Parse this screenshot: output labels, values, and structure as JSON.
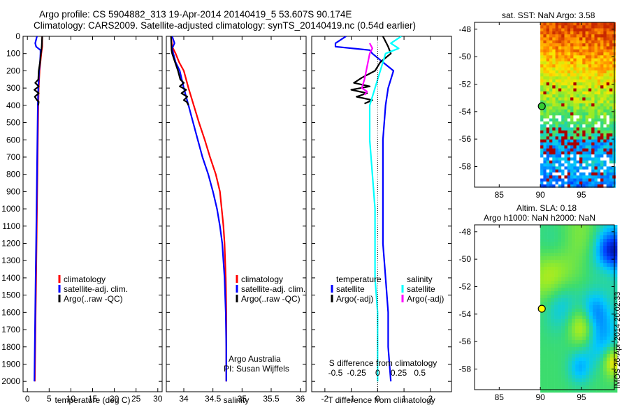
{
  "figure": {
    "title_line1": "Argo profile: CS 5904882_313 19-Apr-2014 20140419_5 53.607S 90.174E",
    "title_line2": "Climatology: CARS2009. Satellite-adjusted climatology: synTS_20140419.nc (0.54d earlier)",
    "credit_line1": "Argo Australia",
    "credit_line2": "PI: Susan Wijffels",
    "stamp": "IMOS 26-Apr-2014 20:02:33",
    "colors": {
      "climatology": "#ff0000",
      "satellite": "#0000ff",
      "argo": "#000000",
      "sat_salinity": "#00ffff",
      "argo_salinity": "#ff00ff"
    }
  },
  "chart_data": [
    {
      "type": "line",
      "name": "temperature-profile",
      "xlabel": "temperature (deg C)",
      "xlim": [
        -1,
        31
      ],
      "xticks": [
        0,
        5,
        10,
        15,
        20,
        25,
        30
      ],
      "ylim": [
        2060,
        0
      ],
      "yticks": [
        0,
        100,
        200,
        300,
        400,
        500,
        600,
        700,
        800,
        900,
        1000,
        1100,
        1200,
        1300,
        1400,
        1500,
        1600,
        1700,
        1800,
        1900,
        2000
      ],
      "legend": [
        "climatology",
        "satellite-adj. clim.",
        "Argo(..raw -QC)"
      ],
      "series": [
        {
          "name": "climatology",
          "color": "#ff0000",
          "points": [
            [
              3.4,
              0
            ],
            [
              3.4,
              60
            ],
            [
              3.2,
              100
            ],
            [
              2.8,
              200
            ],
            [
              2.6,
              300
            ],
            [
              2.5,
              400
            ],
            [
              2.4,
              600
            ],
            [
              2.3,
              800
            ],
            [
              2.2,
              1000
            ],
            [
              2.1,
              1200
            ],
            [
              2.0,
              1400
            ],
            [
              1.9,
              1600
            ],
            [
              1.8,
              1800
            ],
            [
              1.7,
              2000
            ]
          ]
        },
        {
          "name": "satellite-adj. clim.",
          "color": "#0000ff",
          "points": [
            [
              2.2,
              0
            ],
            [
              1.8,
              40
            ],
            [
              2.0,
              60
            ],
            [
              3.0,
              80
            ],
            [
              3.0,
              100
            ],
            [
              2.9,
              150
            ],
            [
              2.7,
              200
            ],
            [
              2.5,
              300
            ],
            [
              2.4,
              400
            ],
            [
              2.3,
              600
            ],
            [
              2.2,
              800
            ],
            [
              2.1,
              1000
            ],
            [
              2.0,
              1200
            ],
            [
              1.9,
              1400
            ],
            [
              1.8,
              1600
            ],
            [
              1.7,
              1800
            ],
            [
              1.6,
              2000
            ]
          ]
        },
        {
          "name": "Argo(..raw -QC)",
          "color": "#000000",
          "points": [
            [
              3.4,
              0
            ],
            [
              3.3,
              60
            ],
            [
              3.1,
              100
            ],
            [
              2.9,
              150
            ],
            [
              2.6,
              200
            ],
            [
              2.5,
              250
            ],
            [
              1.8,
              270
            ],
            [
              2.6,
              290
            ],
            [
              1.6,
              310
            ],
            [
              2.6,
              330
            ],
            [
              1.7,
              350
            ],
            [
              2.2,
              370
            ],
            [
              2.6,
              380
            ],
            [
              2.5,
              400
            ]
          ]
        }
      ]
    },
    {
      "type": "line",
      "name": "salinity-profile",
      "xlabel": "salinity",
      "xlim": [
        33.7,
        36.1
      ],
      "xticks": [
        34,
        34.5,
        35,
        35.5,
        36
      ],
      "xticklabels": [
        "34",
        "34.5",
        "35",
        "35.5",
        "36"
      ],
      "ylim": [
        2060,
        0
      ],
      "legend": [
        "climatology",
        "satellite-adj. clim.",
        "Argo(..raw -QC)"
      ],
      "series": [
        {
          "name": "climatology",
          "color": "#ff0000",
          "points": [
            [
              33.78,
              0
            ],
            [
              33.8,
              60
            ],
            [
              33.86,
              100
            ],
            [
              33.92,
              150
            ],
            [
              34.0,
              200
            ],
            [
              34.08,
              300
            ],
            [
              34.17,
              400
            ],
            [
              34.26,
              500
            ],
            [
              34.36,
              600
            ],
            [
              34.45,
              700
            ],
            [
              34.55,
              800
            ],
            [
              34.62,
              900
            ],
            [
              34.65,
              1000
            ],
            [
              34.68,
              1100
            ],
            [
              34.7,
              1200
            ],
            [
              34.72,
              1400
            ],
            [
              34.73,
              1600
            ],
            [
              34.73,
              1800
            ],
            [
              34.73,
              2000
            ]
          ]
        },
        {
          "name": "satellite-adj. clim.",
          "color": "#0000ff",
          "points": [
            [
              33.8,
              0
            ],
            [
              33.84,
              40
            ],
            [
              33.8,
              70
            ],
            [
              33.82,
              100
            ],
            [
              33.86,
              150
            ],
            [
              33.93,
              200
            ],
            [
              34.0,
              300
            ],
            [
              34.08,
              400
            ],
            [
              34.16,
              500
            ],
            [
              34.24,
              600
            ],
            [
              34.32,
              700
            ],
            [
              34.42,
              800
            ],
            [
              34.5,
              900
            ],
            [
              34.57,
              1000
            ],
            [
              34.62,
              1100
            ],
            [
              34.66,
              1200
            ],
            [
              34.7,
              1400
            ],
            [
              34.72,
              1600
            ],
            [
              34.73,
              1800
            ],
            [
              34.73,
              2000
            ]
          ]
        },
        {
          "name": "Argo(..raw -QC)",
          "color": "#000000",
          "points": [
            [
              33.78,
              0
            ],
            [
              33.79,
              80
            ],
            [
              33.8,
              100
            ],
            [
              33.85,
              150
            ],
            [
              33.9,
              200
            ],
            [
              33.94,
              250
            ],
            [
              34.0,
              270
            ],
            [
              33.93,
              290
            ],
            [
              34.04,
              310
            ],
            [
              33.96,
              330
            ],
            [
              34.06,
              350
            ],
            [
              34.0,
              370
            ],
            [
              34.05,
              380
            ],
            [
              34.08,
              400
            ]
          ]
        }
      ]
    },
    {
      "type": "line",
      "name": "difference-profile",
      "xlabel": "T difference from climatology",
      "xlabel_top": "S difference from climatology",
      "xlim": [
        -2.5,
        2.8
      ],
      "xticks": [
        -2,
        -1,
        0,
        1,
        2
      ],
      "xticklabels": [
        "-2",
        "-1",
        "0",
        "1",
        "2"
      ],
      "top_ticklabels": [
        "-0.5",
        "-0.25",
        "0",
        "0.25",
        "0.5"
      ],
      "ylim": [
        2060,
        0
      ],
      "legend_temperature_title": "temperature",
      "legend_salinity_title": "salinity",
      "legend": [
        "satellite",
        "Argo(-adj)",
        "satellite",
        "Argo(-adj)"
      ],
      "series": [
        {
          "name": "T satellite",
          "color": "#0000ff",
          "points": [
            [
              -1.2,
              0
            ],
            [
              -1.6,
              40
            ],
            [
              -1.6,
              60
            ],
            [
              -0.3,
              80
            ],
            [
              -0.2,
              100
            ],
            [
              0.2,
              150
            ],
            [
              0.6,
              200
            ],
            [
              0.4,
              300
            ],
            [
              0.3,
              400
            ],
            [
              0.2,
              600
            ],
            [
              0.2,
              800
            ],
            [
              0.2,
              1000
            ],
            [
              0.2,
              1200
            ],
            [
              0.3,
              1400
            ],
            [
              0.4,
              1600
            ],
            [
              0.4,
              1800
            ],
            [
              0.5,
              2000
            ]
          ]
        },
        {
          "name": "T Argo(-adj)",
          "color": "#000000",
          "points": [
            [
              0.2,
              0
            ],
            [
              0.4,
              60
            ],
            [
              0.5,
              100
            ],
            [
              0.1,
              150
            ],
            [
              -0.1,
              200
            ],
            [
              -0.6,
              240
            ],
            [
              -0.9,
              270
            ],
            [
              -0.3,
              290
            ],
            [
              -1.0,
              310
            ],
            [
              -0.4,
              330
            ],
            [
              -0.8,
              350
            ],
            [
              -0.2,
              370
            ],
            [
              -0.5,
              390
            ]
          ]
        },
        {
          "name": "S satellite",
          "color": "#00ffff",
          "points": [
            [
              0.9,
              0
            ],
            [
              0.5,
              40
            ],
            [
              0.8,
              70
            ],
            [
              0.3,
              100
            ],
            [
              0.1,
              200
            ],
            [
              -0.1,
              300
            ],
            [
              -0.3,
              400
            ],
            [
              -0.3,
              600
            ],
            [
              -0.2,
              800
            ],
            [
              -0.1,
              1000
            ],
            [
              -0.1,
              1200
            ],
            [
              -0.1,
              1400
            ],
            [
              0,
              1600
            ],
            [
              0,
              1800
            ],
            [
              0,
              2000
            ]
          ]
        },
        {
          "name": "S Argo(-adj)",
          "color": "#ff00ff",
          "points": [
            [
              -0.3,
              40
            ],
            [
              -0.2,
              70
            ],
            [
              -0.3,
              100
            ],
            [
              -0.5,
              250
            ],
            [
              -0.6,
              300
            ],
            [
              -0.4,
              320
            ],
            [
              -0.5,
              340
            ]
          ]
        }
      ]
    },
    {
      "type": "heatmap",
      "name": "sst-map",
      "title": "sat. SST: NaN Argo: 3.58",
      "xlim": [
        82,
        99
      ],
      "ylim": [
        -59.5,
        -47.5
      ],
      "xticks": [
        85,
        90,
        95
      ],
      "yticks": [
        -48,
        -50,
        -52,
        -54,
        -56,
        -58
      ],
      "argo_position": [
        90.174,
        -53.607
      ],
      "data_extent_lon": [
        90,
        99
      ]
    },
    {
      "type": "heatmap",
      "name": "sla-map",
      "title_line1": "Altim. SLA: 0.18",
      "title_line2": "Argo h1000: NaN h2000: NaN",
      "xlim": [
        82,
        99
      ],
      "ylim": [
        -59.5,
        -47.5
      ],
      "xticks": [
        85,
        90,
        95
      ],
      "yticks": [
        -48,
        -50,
        -52,
        -54,
        -56,
        -58
      ],
      "argo_position": [
        90.174,
        -53.607
      ],
      "data_extent_lon": [
        90,
        99
      ]
    }
  ]
}
